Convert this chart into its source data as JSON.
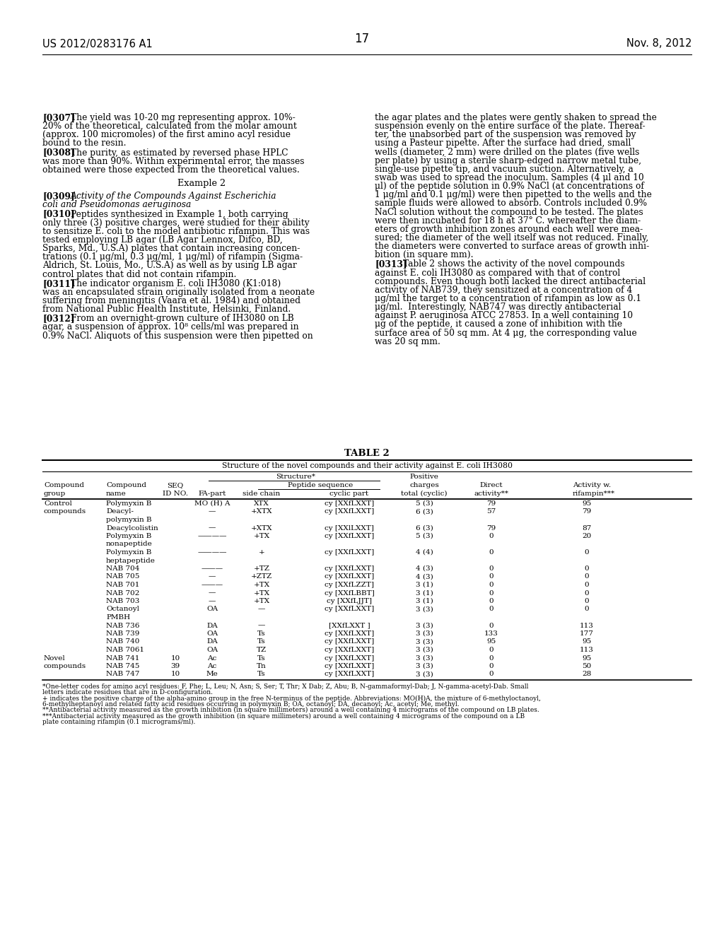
{
  "bg_color": "#ffffff",
  "header_left": "US 2012/0283176 A1",
  "header_right": "Nov. 8, 2012",
  "page_number": "17",
  "left_paragraphs": [
    {
      "tag": "[0307]",
      "lines": [
        "The yield was 10-20 mg representing approx. 10%-",
        "20% of the theoretical, calculated from the molar amount",
        "(approx. 100 micromoles) of the first amino acyl residue",
        "bound to the resin."
      ]
    },
    {
      "tag": "[0308]",
      "lines": [
        "The purity, as estimated by reversed phase HPLC",
        "was more than 90%. Within experimental error, the masses",
        "obtained were those expected from the theoretical values."
      ]
    },
    {
      "tag": "EXAMPLE2",
      "lines": []
    },
    {
      "tag": "[0309]",
      "lines": [
        "Activity of the Compounds Against Escherichia",
        "coli and Pseudomonas aeruginosa"
      ],
      "italic_lines": [
        0,
        1
      ]
    },
    {
      "tag": "[0310]",
      "lines": [
        "Peptides synthesized in Example 1, both carrying",
        "only three (3) positive charges, were studied for their ability",
        "to sensitize E. coli to the model antibiotic rifampin. This was",
        "tested employing LB agar (LB Agar Lennox, Difco, BD,",
        "Sparks, Md., U.S.A) plates that contain increasing concen-",
        "trations (0.1 μg/ml, 0.3 μg/ml, 1 μg/ml) of rifampin (Sigma-",
        "Aldrich, St. Louis, Mo., U.S.A) as well as by using LB agar",
        "control plates that did not contain rifampin."
      ]
    },
    {
      "tag": "[0311]",
      "lines": [
        "The indicator organism E. coli IH3080 (K1:018)",
        "was an encapsulated strain originally isolated from a neonate",
        "suffering from meningitis (Vaara et al. 1984) and obtained",
        "from National Public Health Institute, Helsinki, Finland."
      ]
    },
    {
      "tag": "[0312]",
      "lines": [
        "From an overnight-grown culture of IH3080 on LB",
        "agar, a suspension of approx. 10⁸ cells/ml was prepared in",
        "0.9% NaCl. Aliquots of this suspension were then pipetted on"
      ]
    }
  ],
  "right_paragraphs": [
    {
      "tag": "",
      "lines": [
        "the agar plates and the plates were gently shaken to spread the",
        "suspension evenly on the entire surface of the plate. Thereaf-",
        "ter, the unabsorbed part of the suspension was removed by",
        "using a Pasteur pipette. After the surface had dried, small",
        "wells (diameter, 2 mm) were drilled on the plates (five wells",
        "per plate) by using a sterile sharp-edged narrow metal tube,",
        "single-use pipette tip, and vacuum suction. Alternatively, a",
        "swab was used to spread the inoculum. Samples (4 μl and 10",
        "μl) of the peptide solution in 0.9% NaCl (at concentrations of",
        "1 μg/ml and 0.1 μg/ml) were then pipetted to the wells and the",
        "sample fluids were allowed to absorb. Controls included 0.9%",
        "NaCl solution without the compound to be tested. The plates",
        "were then incubated for 18 h at 37° C. whereafter the diam-",
        "eters of growth inhibition zones around each well were mea-",
        "sured; the diameter of the well itself was not reduced. Finally,",
        "the diameters were converted to surface areas of growth inhi-",
        "bition (in square mm)."
      ]
    },
    {
      "tag": "[0313]",
      "lines": [
        "Table 2 shows the activity of the novel compounds",
        "against E. coli IH3080 as compared with that of control",
        "compounds. Even though both lacked the direct antibacterial",
        "activity of NAB739, they sensitized at a concentration of 4",
        "μg/ml the target to a concentration of rifampin as low as 0.1",
        "μg/ml.  Interestingly, NAB747 was directly antibacterial",
        "against P. aeruginosa ATCC 27853. In a well containing 10",
        "μg of the peptide, it caused a zone of inhibition with the",
        "surface area of 50 sq mm. At 4 μg, the corresponding value",
        "was 20 sq mm."
      ]
    }
  ],
  "table_rows": [
    {
      "group": "Control",
      "name": "Polymyxin B",
      "seq": "",
      "fa": "MO (H) A",
      "side": "XTX",
      "cyclic": "cy [XXfLXXT]",
      "charges": "5 (3)",
      "direct": "79",
      "activity": "95"
    },
    {
      "group": "compounds",
      "name": "Deacyl-",
      "seq": "",
      "fa": "—",
      "side": "+XTX",
      "cyclic": "cy [XXfLXXT]",
      "charges": "6 (3)",
      "direct": "57",
      "activity": "79"
    },
    {
      "group": "",
      "name": "polymyxin B",
      "seq": "",
      "fa": "",
      "side": "",
      "cyclic": "",
      "charges": "",
      "direct": "",
      "activity": ""
    },
    {
      "group": "",
      "name": "Deacylcolistin",
      "seq": "",
      "fa": "—",
      "side": "+XTX",
      "cyclic": "cy [XXlLXXT]",
      "charges": "6 (3)",
      "direct": "79",
      "activity": "87"
    },
    {
      "group": "",
      "name": "Polymyxin B",
      "seq": "",
      "fa": "————",
      "side": "+TX",
      "cyclic": "cy [XXfLXXT]",
      "charges": "5 (3)",
      "direct": "0",
      "activity": "20"
    },
    {
      "group": "",
      "name": "nonapeptide",
      "seq": "",
      "fa": "",
      "side": "",
      "cyclic": "",
      "charges": "",
      "direct": "",
      "activity": ""
    },
    {
      "group": "",
      "name": "Polymyxin B",
      "seq": "",
      "fa": "————",
      "side": "+",
      "cyclic": "cy [XXfLXXT]",
      "charges": "4 (4)",
      "direct": "0",
      "activity": "0"
    },
    {
      "group": "",
      "name": "heptapeptide",
      "seq": "",
      "fa": "",
      "side": "",
      "cyclic": "",
      "charges": "",
      "direct": "",
      "activity": ""
    },
    {
      "group": "",
      "name": "NAB 704",
      "seq": "",
      "fa": "———",
      "side": "+TZ",
      "cyclic": "cy [XXfLXXT]",
      "charges": "4 (3)",
      "direct": "0",
      "activity": "0"
    },
    {
      "group": "",
      "name": "NAB 705",
      "seq": "",
      "fa": "—",
      "side": "+ZTZ",
      "cyclic": "cy [XXfLXXT]",
      "charges": "4 (3)",
      "direct": "0",
      "activity": "0"
    },
    {
      "group": "",
      "name": "NAB 701",
      "seq": "",
      "fa": "———",
      "side": "+TX",
      "cyclic": "cy [XXfLZZT]",
      "charges": "3 (1)",
      "direct": "0",
      "activity": "0"
    },
    {
      "group": "",
      "name": "NAB 702",
      "seq": "",
      "fa": "—",
      "side": "+TX",
      "cyclic": "cy [XXfLBBT]",
      "charges": "3 (1)",
      "direct": "0",
      "activity": "0"
    },
    {
      "group": "",
      "name": "NAB 703",
      "seq": "",
      "fa": "—",
      "side": "+TX",
      "cyclic": "cy [XXfLJJT]",
      "charges": "3 (1)",
      "direct": "0",
      "activity": "0"
    },
    {
      "group": "",
      "name": "Octanoyl",
      "seq": "",
      "fa": "OA",
      "side": "—",
      "cyclic": "cy [XXfLXXT]",
      "charges": "3 (3)",
      "direct": "0",
      "activity": "0"
    },
    {
      "group": "",
      "name": "PMBH",
      "seq": "",
      "fa": "",
      "side": "",
      "cyclic": "",
      "charges": "",
      "direct": "",
      "activity": ""
    },
    {
      "group": "",
      "name": "NAB 736",
      "seq": "",
      "fa": "DA",
      "side": "—",
      "cyclic": "[XXfLXXT ]",
      "charges": "3 (3)",
      "direct": "0",
      "activity": "113"
    },
    {
      "group": "",
      "name": "NAB 739",
      "seq": "",
      "fa": "OA",
      "side": "Ts",
      "cyclic": "cy [XXfLXXT]",
      "charges": "3 (3)",
      "direct": "133",
      "activity": "177"
    },
    {
      "group": "",
      "name": "NAB 740",
      "seq": "",
      "fa": "DA",
      "side": "Ts",
      "cyclic": "cy [XXfLXXT]",
      "charges": "3 (3)",
      "direct": "95",
      "activity": "95"
    },
    {
      "group": "",
      "name": "NAB 7061",
      "seq": "",
      "fa": "OA",
      "side": "TZ",
      "cyclic": "cy [XXfLXXT]",
      "charges": "3 (3)",
      "direct": "0",
      "activity": "113"
    },
    {
      "group": "Novel",
      "name": "NAB 741",
      "seq": "10",
      "fa": "Ac",
      "side": "Ts",
      "cyclic": "cy [XXfLXXT]",
      "charges": "3 (3)",
      "direct": "0",
      "activity": "95"
    },
    {
      "group": "compounds",
      "name": "NAB 745",
      "seq": "39",
      "fa": "Ac",
      "side": "Tn",
      "cyclic": "cy [XXfLXXT]",
      "charges": "3 (3)",
      "direct": "0",
      "activity": "50"
    },
    {
      "group": "",
      "name": "NAB 747",
      "seq": "10",
      "fa": "Me",
      "side": "Ts",
      "cyclic": "cy [XXfLXXT]",
      "charges": "3 (3)",
      "direct": "0",
      "activity": "28"
    }
  ],
  "footnotes": [
    "*One-letter codes for amino acyl residues: F, Phe; L, Leu; N, Asn; S, Ser; T, Thr; X Dab; Z, Abu; B, N-gammaformyl-Dab; J, N-gamma-acetyl-Dab. Small",
    "letters indicate residues that are in D-configuration.",
    "+ indicates the positive charge of the alpha-amino group in the free N-terminus of the peptide. Abbreviations: MO(H)A, the mixture of 6-methyloctanoyl,",
    "6-methylheptanoyl and related fatty acid residues occurring in polymyxin B; OA, octanoyl; DA, decanoyl; Ac, acetyl; Me, methyl.",
    "**Antibacterial activity measured as the growth inhibition (in square millimeters) around a well containing 4 micrograms of the compound on LB plates.",
    "***Antibacterial activity measured as the growth inhibition (in square millimeters) around a well containing 4 micrograms of the compound on a LB",
    "plate containing rifampin (0.1 micrograms/ml)."
  ]
}
